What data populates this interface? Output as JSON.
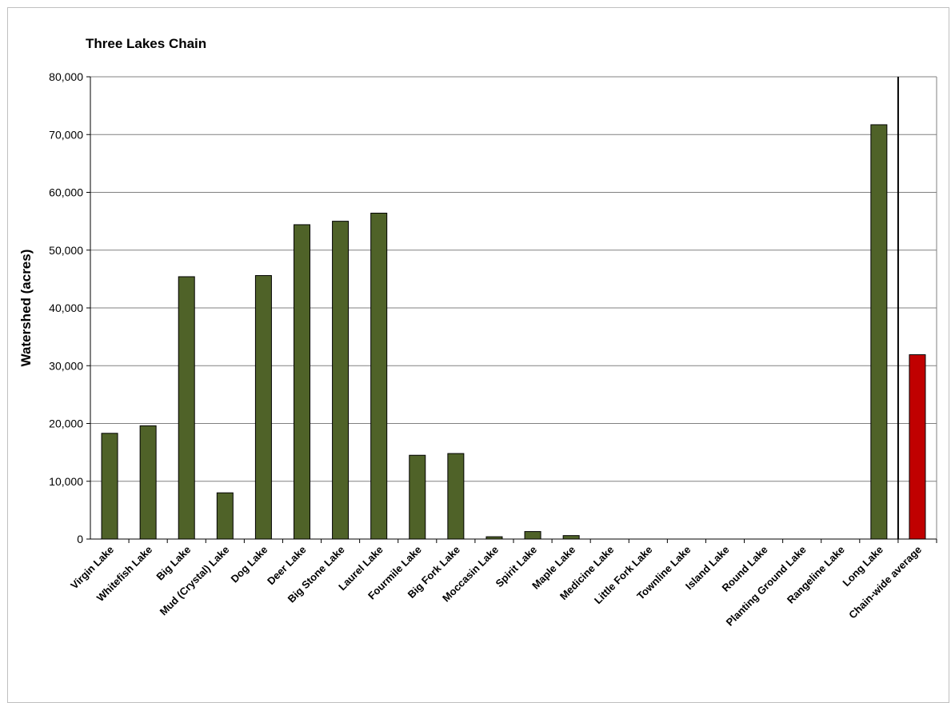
{
  "chart_data": {
    "type": "bar",
    "title": "Three Lakes Chain",
    "xlabel": "",
    "ylabel": "Watershed (acres)",
    "ylim": [
      0,
      80000
    ],
    "yticks": [
      0,
      10000,
      20000,
      30000,
      40000,
      50000,
      60000,
      70000,
      80000
    ],
    "ytick_labels": [
      "0",
      "10,000",
      "20,000",
      "30,000",
      "40,000",
      "50,000",
      "60,000",
      "70,000",
      "80,000"
    ],
    "grid": true,
    "legend": "none",
    "categories": [
      "Virgin Lake",
      "Whitefish Lake",
      "Big Lake",
      "Mud (Crystal)  Lake",
      "Dog Lake",
      "Deer Lake",
      "Big Stone Lake",
      "Laurel Lake",
      "Fourmile Lake",
      "Big Fork Lake",
      "Moccasin Lake",
      "Spirit Lake",
      "Maple Lake",
      "Medicine Lake",
      "Little Fork Lake",
      "Townline Lake",
      "Island Lake",
      "Round Lake",
      "Planting Ground Lake",
      "Rangeline Lake",
      "Long Lake",
      "Chain-wide average"
    ],
    "values": [
      18300,
      19600,
      45400,
      8000,
      45600,
      54400,
      55000,
      56400,
      14500,
      14800,
      400,
      1300,
      600,
      0,
      0,
      0,
      0,
      0,
      0,
      0,
      71700,
      31900
    ],
    "bar_colors": {
      "lake": "#4f6228",
      "average": "#c00000"
    },
    "separator_before_category": "Chain-wide average"
  }
}
